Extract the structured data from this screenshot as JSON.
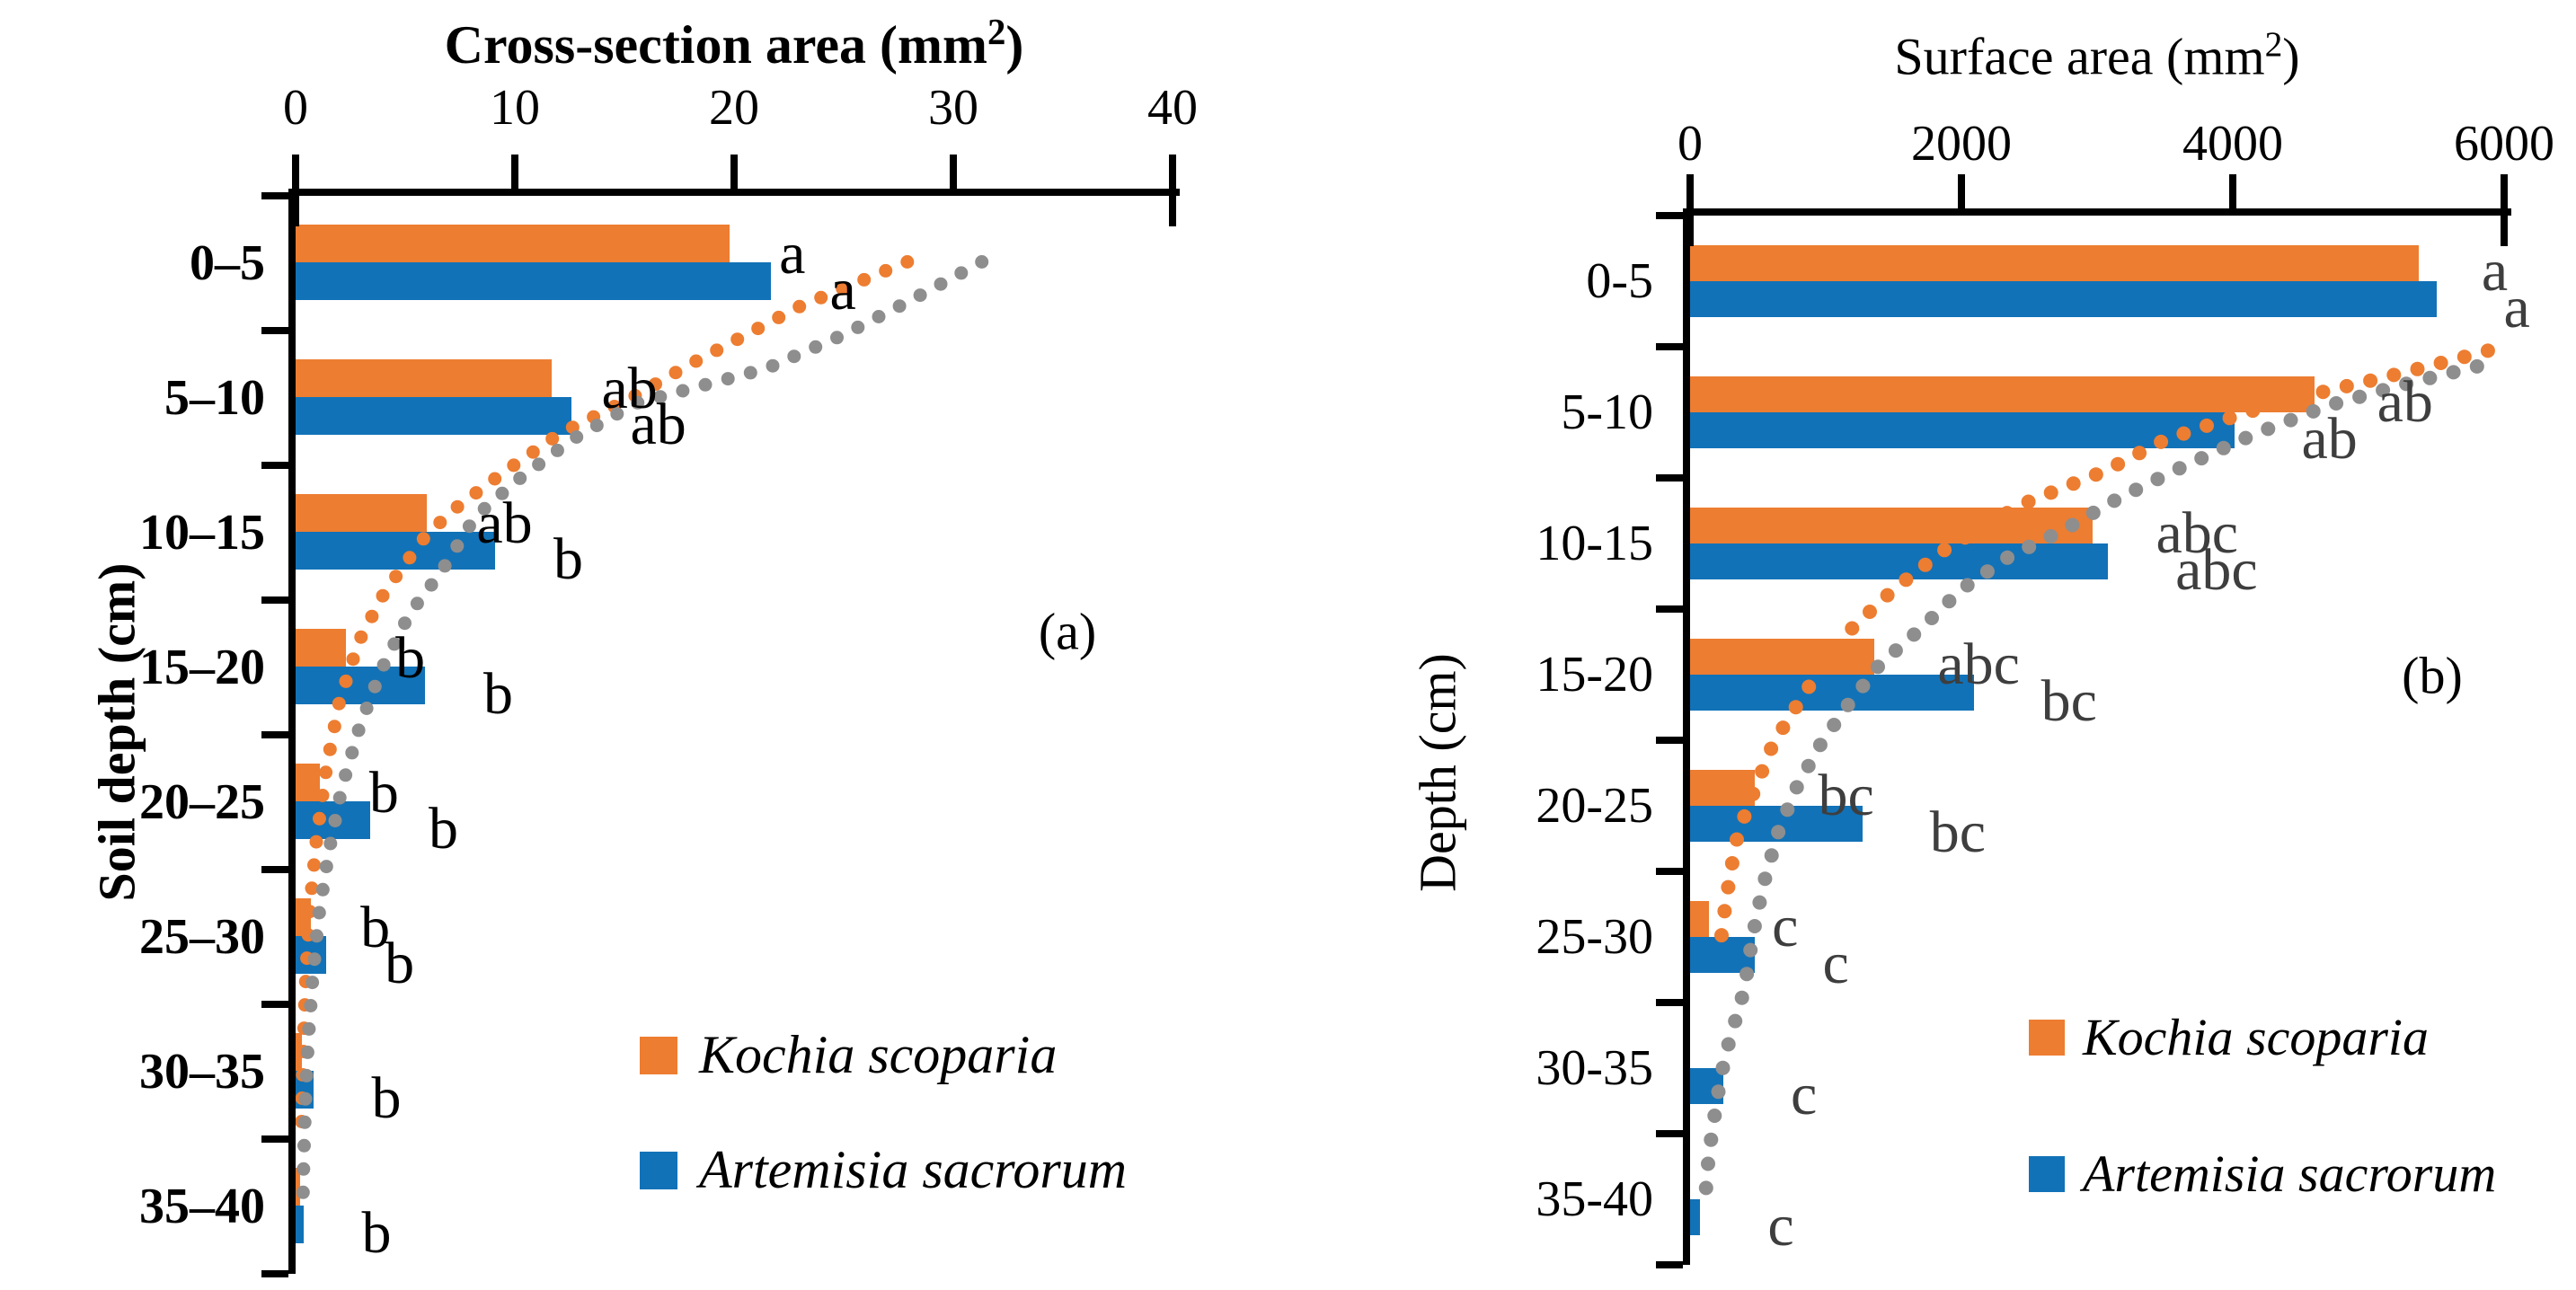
{
  "chart_data": [
    {
      "type": "bar",
      "orientation": "horizontal-bars-depth-profile",
      "panel_tag": "(a)",
      "title": {
        "pre": "Cross-section area (mm",
        "sup": "2",
        "post": ")"
      },
      "xlabel": "Cross-section area (mm2)",
      "ylabel": "Soil depth (cm)",
      "x_axis": {
        "min": 0,
        "max": 40,
        "tick_labels": [
          "0",
          "10",
          "20",
          "30",
          "40"
        ],
        "tick_values": [
          0,
          10,
          20,
          30,
          40
        ]
      },
      "categories": [
        "0–5",
        "5–10",
        "10–15",
        "15–20",
        "20–25",
        "25–30",
        "30–35",
        "35–40"
      ],
      "series": [
        {
          "name": "Kochia scoparia",
          "color": "#ED7D31",
          "values": [
            19.8,
            11.7,
            6.0,
            2.3,
            1.1,
            0.7,
            0.3,
            0.2
          ],
          "letters": [
            "a",
            "ab",
            "ab",
            "b",
            "b",
            "b",
            "",
            ""
          ]
        },
        {
          "name": "Artemisia sacrorum",
          "color": "#1272B7",
          "values": [
            21.7,
            12.6,
            9.1,
            5.9,
            3.4,
            1.4,
            0.8,
            0.35
          ],
          "letters": [
            "a",
            "ab",
            "b",
            "b",
            "b",
            "b",
            "b",
            "b"
          ]
        }
      ],
      "trend_curves": [
        {
          "name": "orange-dotted-curve",
          "color": "#ED7D31",
          "points": [
            [
              27.9,
              0.49
            ],
            [
              23,
              0.82
            ],
            [
              18,
              1.25
            ],
            [
              15.2,
              1.51
            ],
            [
              12,
              1.77
            ],
            [
              9.5,
              2.05
            ],
            [
              7.2,
              2.33
            ],
            [
              5.9,
              2.53
            ],
            [
              4.1,
              2.93
            ],
            [
              2.9,
              3.3
            ],
            [
              2.0,
              3.75
            ],
            [
              1.4,
              4.25
            ],
            [
              0.95,
              4.78
            ],
            [
              0.66,
              5.27
            ],
            [
              0.48,
              5.75
            ],
            [
              0.38,
              6.2
            ],
            [
              0.3,
              6.65
            ],
            [
              0.27,
              6.9
            ]
          ]
        },
        {
          "name": "gray-dotted-curve",
          "color": "#8E8E8E",
          "points": [
            [
              31.3,
              0.49
            ],
            [
              28,
              0.78
            ],
            [
              25,
              1.03
            ],
            [
              21.5,
              1.28
            ],
            [
              15.5,
              1.54
            ],
            [
              12.6,
              1.81
            ],
            [
              10.2,
              2.1
            ],
            [
              8.2,
              2.38
            ],
            [
              6.6,
              2.8
            ],
            [
              5.2,
              3.1
            ],
            [
              3.9,
              3.52
            ],
            [
              2.9,
              3.95
            ],
            [
              2.1,
              4.4
            ],
            [
              1.5,
              4.88
            ],
            [
              1.05,
              5.35
            ],
            [
              0.78,
              5.8
            ],
            [
              0.58,
              6.25
            ],
            [
              0.45,
              6.7
            ],
            [
              0.37,
              7.15
            ],
            [
              0.33,
              7.48
            ]
          ]
        }
      ],
      "legend": [
        {
          "label": "Kochia scoparia",
          "color": "#ED7D31"
        },
        {
          "label": "Artemisia sacrorum",
          "color": "#1272B7"
        }
      ]
    },
    {
      "type": "bar",
      "orientation": "horizontal-bars-depth-profile",
      "panel_tag": "(b)",
      "title": {
        "pre": "Surface area (mm",
        "sup": "2",
        "post": ")"
      },
      "xlabel": "Surface area (mm2)",
      "ylabel": "Depth (cm)",
      "x_axis": {
        "min": 0,
        "max": 6000,
        "tick_labels": [
          "0",
          "2000",
          "4000",
          "6000"
        ],
        "tick_values": [
          0,
          2000,
          4000,
          6000
        ]
      },
      "categories": [
        "0-5",
        "5-10",
        "10-15",
        "15-20",
        "20-25",
        "25-30",
        "30-35",
        "35-40"
      ],
      "series": [
        {
          "name": "Kochia scoparia",
          "color": "#ED7D31",
          "values": [
            5370,
            4600,
            2970,
            1360,
            480,
            140,
            0,
            0
          ],
          "letters": [
            "a",
            "ab",
            "abc",
            "abc",
            "bc",
            "c",
            "",
            ""
          ]
        },
        {
          "name": "Artemisia sacrorum",
          "color": "#1272B7",
          "values": [
            5500,
            4010,
            3080,
            2090,
            1270,
            480,
            245,
            75
          ],
          "letters": [
            "a",
            "ab",
            "abc",
            "bc",
            "bc",
            "c",
            "c",
            "c"
          ]
        }
      ],
      "trend_curves": [
        {
          "name": "orange-dotted-curve",
          "color": "#ED7D31",
          "points": [
            [
              5880,
              1.03
            ],
            [
              5250,
              1.2
            ],
            [
              4600,
              1.36
            ],
            [
              4100,
              1.5
            ],
            [
              3500,
              1.71
            ],
            [
              3050,
              1.95
            ],
            [
              2450,
              2.2
            ],
            [
              1900,
              2.53
            ],
            [
              1500,
              2.85
            ],
            [
              1140,
              3.2
            ],
            [
              850,
              3.63
            ],
            [
              610,
              4.03
            ],
            [
              480,
              4.37
            ],
            [
              355,
              4.7
            ],
            [
              295,
              5.02
            ],
            [
              248,
              5.35
            ],
            [
              228,
              5.52
            ]
          ]
        },
        {
          "name": "gray-dotted-curve",
          "color": "#8E8E8E",
          "points": [
            [
              5800,
              1.15
            ],
            [
              5250,
              1.29
            ],
            [
              4700,
              1.45
            ],
            [
              4150,
              1.67
            ],
            [
              3600,
              1.93
            ],
            [
              3150,
              2.16
            ],
            [
              2750,
              2.4
            ],
            [
              2350,
              2.6
            ],
            [
              2000,
              2.85
            ],
            [
              1700,
              3.15
            ],
            [
              1400,
              3.42
            ],
            [
              1150,
              3.75
            ],
            [
              950,
              4.05
            ],
            [
              780,
              4.37
            ],
            [
              650,
              4.7
            ],
            [
              540,
              5.1
            ],
            [
              460,
              5.5
            ],
            [
              400,
              5.9
            ],
            [
              330,
              6.15
            ],
            [
              260,
              6.4
            ],
            [
              205,
              6.7
            ],
            [
              160,
              7.0
            ],
            [
              130,
              7.25
            ],
            [
              115,
              7.45
            ]
          ]
        }
      ],
      "legend": [
        {
          "label": "Kochia scoparia",
          "color": "#ED7D31"
        },
        {
          "label": "Artemisia sacrorum",
          "color": "#1272B7"
        }
      ]
    }
  ]
}
